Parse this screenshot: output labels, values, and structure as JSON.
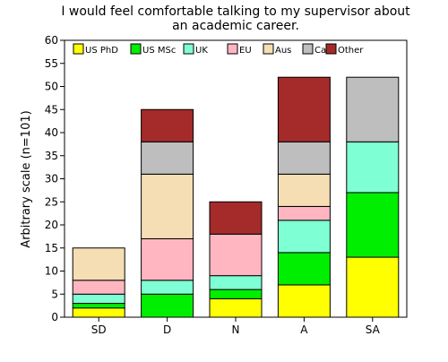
{
  "chart_data": {
    "type": "bar",
    "stacked": true,
    "title_lines": [
      "I would feel comfortable talking to my supervisor about",
      "an academic career."
    ],
    "xlabel": "",
    "ylabel": "Arbitrary scale (n=101)",
    "ylim": [
      0,
      60
    ],
    "yticks": [
      0,
      5,
      10,
      15,
      20,
      25,
      30,
      35,
      40,
      45,
      50,
      55,
      60
    ],
    "grid": false,
    "legend_position": "top-inside",
    "categories": [
      "SD",
      "D",
      "N",
      "A",
      "SA"
    ],
    "series": [
      {
        "name": "US PhD",
        "color": "#ffff00",
        "values": [
          2,
          0,
          4,
          7,
          13
        ]
      },
      {
        "name": "US MSc",
        "color": "#00ee00",
        "values": [
          1,
          5,
          2,
          7,
          14
        ]
      },
      {
        "name": "UK",
        "color": "#7fffd4",
        "values": [
          2,
          3,
          3,
          7,
          11
        ]
      },
      {
        "name": "EU",
        "color": "#ffb6c1",
        "values": [
          3,
          9,
          9,
          3,
          0
        ]
      },
      {
        "name": "Aus",
        "color": "#f5deb3",
        "values": [
          7,
          14,
          0,
          7,
          0
        ]
      },
      {
        "name": "Ca",
        "color": "#bebebe",
        "values": [
          0,
          7,
          0,
          7,
          14
        ]
      },
      {
        "name": "Other",
        "color": "#a52a2a",
        "values": [
          0,
          7,
          7,
          14,
          0
        ]
      }
    ]
  }
}
